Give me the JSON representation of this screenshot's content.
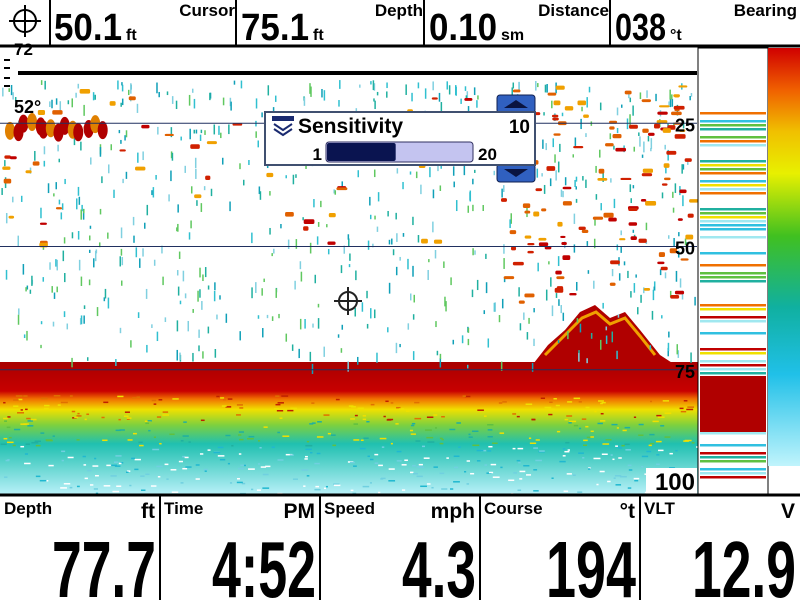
{
  "top_bar": [
    {
      "value": "50.1",
      "unit": "ft",
      "label": "Cursor"
    },
    {
      "value": "75.1",
      "unit": "ft",
      "label": "Depth"
    },
    {
      "value": "0.10",
      "unit": "sm",
      "label": "Distance"
    },
    {
      "value": "038",
      "unit": "°t",
      "label": "Bearing"
    }
  ],
  "sonar": {
    "top_readout": "72",
    "temperature": "52°",
    "depth_scale": [
      25,
      50,
      75,
      100
    ]
  },
  "sensitivity": {
    "title": "Sensitivity",
    "value": 10,
    "min": 1,
    "max": 20
  },
  "bottom_bar": [
    {
      "label": "Depth",
      "unit": "ft",
      "value": "77.7"
    },
    {
      "label": "Time",
      "unit": "PM",
      "value": "4:52"
    },
    {
      "label": "Speed",
      "unit": "mph",
      "value": "4.3"
    },
    {
      "label": "Course",
      "unit": "°t",
      "value": "194"
    },
    {
      "label": "VLT",
      "unit": "V",
      "value": "12.9"
    }
  ]
}
